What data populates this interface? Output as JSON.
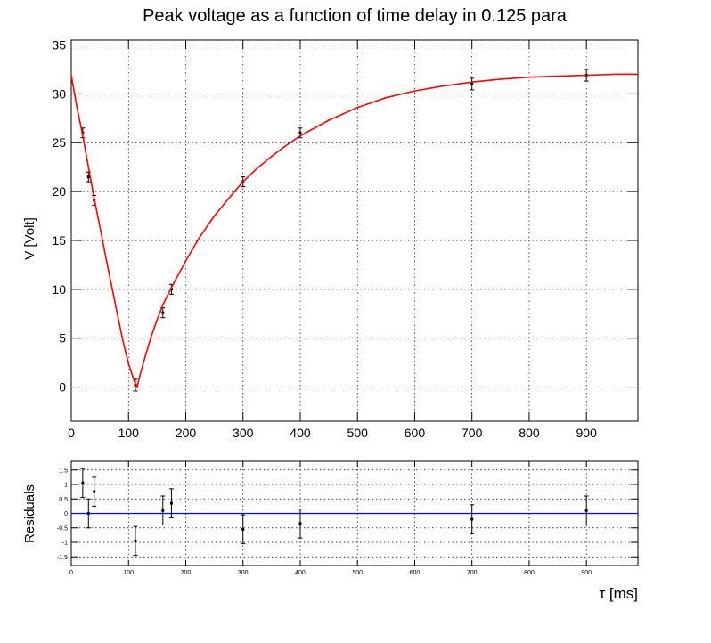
{
  "title": "Peak voltage as a function of time delay in 0.125 para",
  "colors": {
    "fit": "#ff0000",
    "residual_line": "#0000ff",
    "points": "#000000"
  },
  "chart_data": [
    {
      "type": "scatter",
      "panel": "main",
      "ylabel": "V [Volt]",
      "xlabel": "",
      "xlim": [
        0,
        990
      ],
      "ylim": [
        -3.5,
        35.5
      ],
      "xticks": [
        "0",
        "100",
        "200",
        "300",
        "400",
        "500",
        "600",
        "700",
        "800",
        "900"
      ],
      "yticks": [
        "0",
        "5",
        "10",
        "15",
        "20",
        "25",
        "30",
        "35"
      ],
      "grid": true,
      "series": [
        {
          "kind": "points_with_errors",
          "x": [
            20,
            30,
            40,
            112,
            160,
            175,
            300,
            400,
            700,
            900
          ],
          "y": [
            26.0,
            21.5,
            19.1,
            0.2,
            7.6,
            10.0,
            21.0,
            26.0,
            31.0,
            31.9
          ],
          "yerr": [
            0.5,
            0.5,
            0.5,
            0.6,
            0.5,
            0.5,
            0.5,
            0.5,
            0.6,
            0.6
          ]
        },
        {
          "kind": "fit_curve",
          "x": [
            0,
            10,
            20,
            30,
            40,
            50,
            60,
            70,
            80,
            90,
            100,
            110,
            115,
            120,
            130,
            140,
            150,
            160,
            170,
            175,
            200,
            225,
            250,
            275,
            300,
            325,
            350,
            375,
            400,
            450,
            500,
            550,
            600,
            650,
            700,
            750,
            800,
            850,
            900,
            950,
            990
          ],
          "y": [
            31.9,
            28.6,
            25.8,
            22.5,
            19.3,
            16.4,
            13.4,
            10.5,
            7.6,
            4.8,
            2.4,
            0.6,
            0.0,
            1.2,
            3.3,
            5.2,
            6.9,
            8.4,
            9.6,
            10.2,
            12.9,
            15.4,
            17.5,
            19.3,
            21.0,
            22.4,
            23.6,
            24.7,
            25.7,
            27.3,
            28.6,
            29.6,
            30.3,
            30.8,
            31.2,
            31.5,
            31.7,
            31.8,
            31.9,
            32.0,
            32.0
          ]
        }
      ]
    },
    {
      "type": "scatter",
      "panel": "residuals",
      "ylabel": "Residuals",
      "xlabel": "τ [ms]",
      "xlim": [
        0,
        990
      ],
      "ylim": [
        -1.8,
        1.8
      ],
      "xticks": [
        "0",
        "100",
        "200",
        "300",
        "400",
        "500",
        "600",
        "700",
        "800",
        "900"
      ],
      "yticks": [
        "1.5",
        "1",
        "0.5",
        "0",
        "-0.5",
        "-1",
        "-1.5"
      ],
      "grid": true,
      "series": [
        {
          "kind": "points_with_errors",
          "x": [
            20,
            30,
            40,
            112,
            160,
            175,
            300,
            400,
            700,
            900
          ],
          "y": [
            1.05,
            0.0,
            0.75,
            -0.95,
            0.1,
            0.35,
            -0.55,
            -0.35,
            -0.2,
            0.1
          ],
          "yerr": [
            0.5,
            0.5,
            0.5,
            0.5,
            0.5,
            0.5,
            0.5,
            0.5,
            0.5,
            0.5
          ]
        },
        {
          "kind": "zero_line",
          "y": 0
        }
      ]
    }
  ]
}
